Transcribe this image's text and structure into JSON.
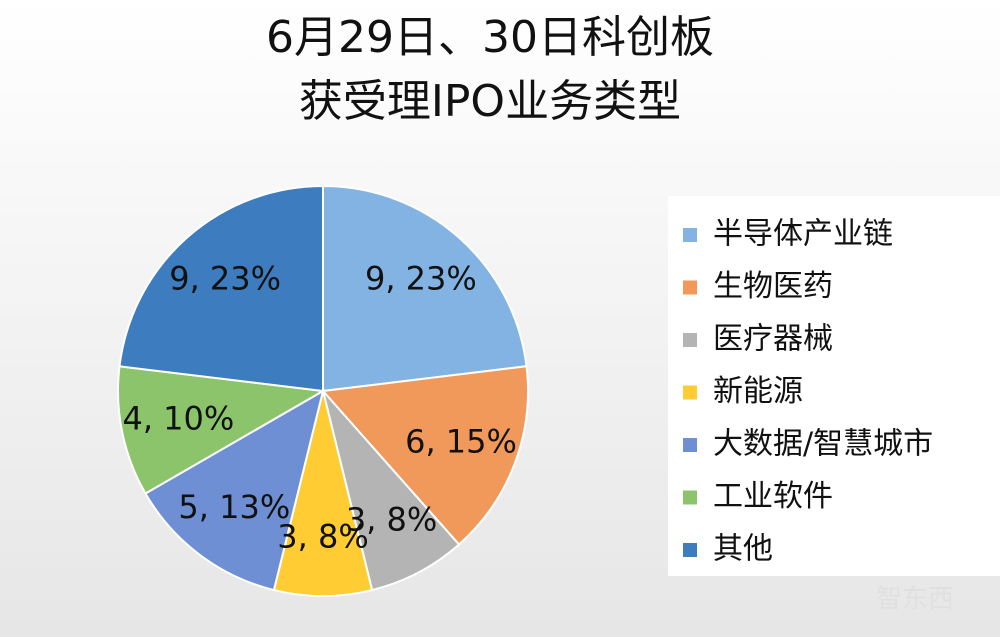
{
  "chart_data": {
    "type": "pie",
    "title": [
      "6月29日、30日科创板",
      "获受理IPO业务类型"
    ],
    "categories": [
      "半导体产业链",
      "生物医药",
      "医疗器械",
      "新能源",
      "大数据/智慧城市",
      "工业软件",
      "其他"
    ],
    "values": [
      9,
      6,
      3,
      3,
      5,
      4,
      9
    ],
    "value_labels": [
      "9, 23%",
      "6, 15%",
      "3, 8%",
      "3, 8%",
      "5, 13%",
      "4, 10%",
      "9, 23%"
    ],
    "colors": [
      "#82b3e2",
      "#f0995a",
      "#b4b4b4",
      "#ffcc33",
      "#6f8fd5",
      "#8cc46c",
      "#3c7cbf"
    ],
    "legend": "right",
    "watermark": "智东西"
  }
}
